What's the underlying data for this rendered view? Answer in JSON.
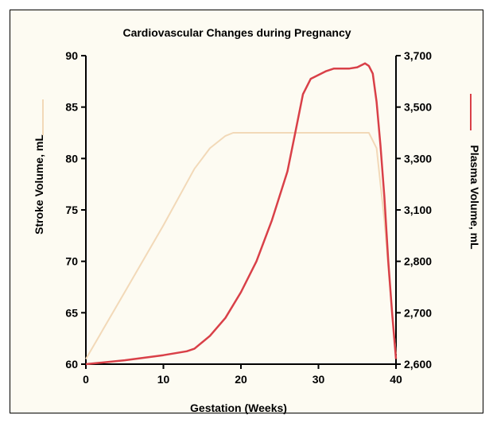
{
  "chart_data": {
    "type": "line",
    "title": "Cardiovascular Changes during Pregnancy",
    "xlabel": "Gestation (Weeks)",
    "ylabel_left": "Stroke Volume, mL",
    "ylabel_right": "Plasma Volume, mL",
    "xlim": [
      0,
      40
    ],
    "ylim_left": [
      60,
      90
    ],
    "ylim_right": [
      2600,
      3800
    ],
    "x_ticks": [
      "0",
      "10",
      "20",
      "30",
      "40"
    ],
    "y_ticks_left": [
      "60",
      "65",
      "70",
      "75",
      "80",
      "85",
      "90"
    ],
    "y_ticks_right": [
      "2,600",
      "2,700",
      "2,800",
      "3,100",
      "3,300",
      "3,500",
      "3,700"
    ],
    "grid": false,
    "series": [
      {
        "name": "Stroke Volume, mL",
        "axis": "left",
        "color": "#f2d9b8",
        "x": [
          0,
          5,
          10,
          14,
          16,
          18,
          19,
          25,
          36.5,
          37.5,
          38.5,
          39.5,
          40
        ],
        "y": [
          60.5,
          67,
          73.5,
          79,
          81,
          82.2,
          82.5,
          82.5,
          82.5,
          81,
          74,
          65,
          61
        ]
      },
      {
        "name": "Plasma Volume, mL",
        "axis": "right",
        "color": "#d94048",
        "x": [
          0,
          5,
          10,
          13,
          14,
          16,
          18,
          20,
          22,
          24,
          26,
          27,
          28,
          29,
          31,
          32,
          33,
          34,
          35,
          36,
          36.5,
          37,
          37.5,
          38,
          38.5,
          39,
          39.5,
          40
        ],
        "y": [
          2600,
          2615,
          2635,
          2650,
          2660,
          2710,
          2780,
          2880,
          3000,
          3160,
          3350,
          3500,
          3650,
          3710,
          3740,
          3750,
          3750,
          3750,
          3755,
          3770,
          3760,
          3730,
          3620,
          3450,
          3250,
          3000,
          2800,
          2620
        ]
      }
    ]
  }
}
